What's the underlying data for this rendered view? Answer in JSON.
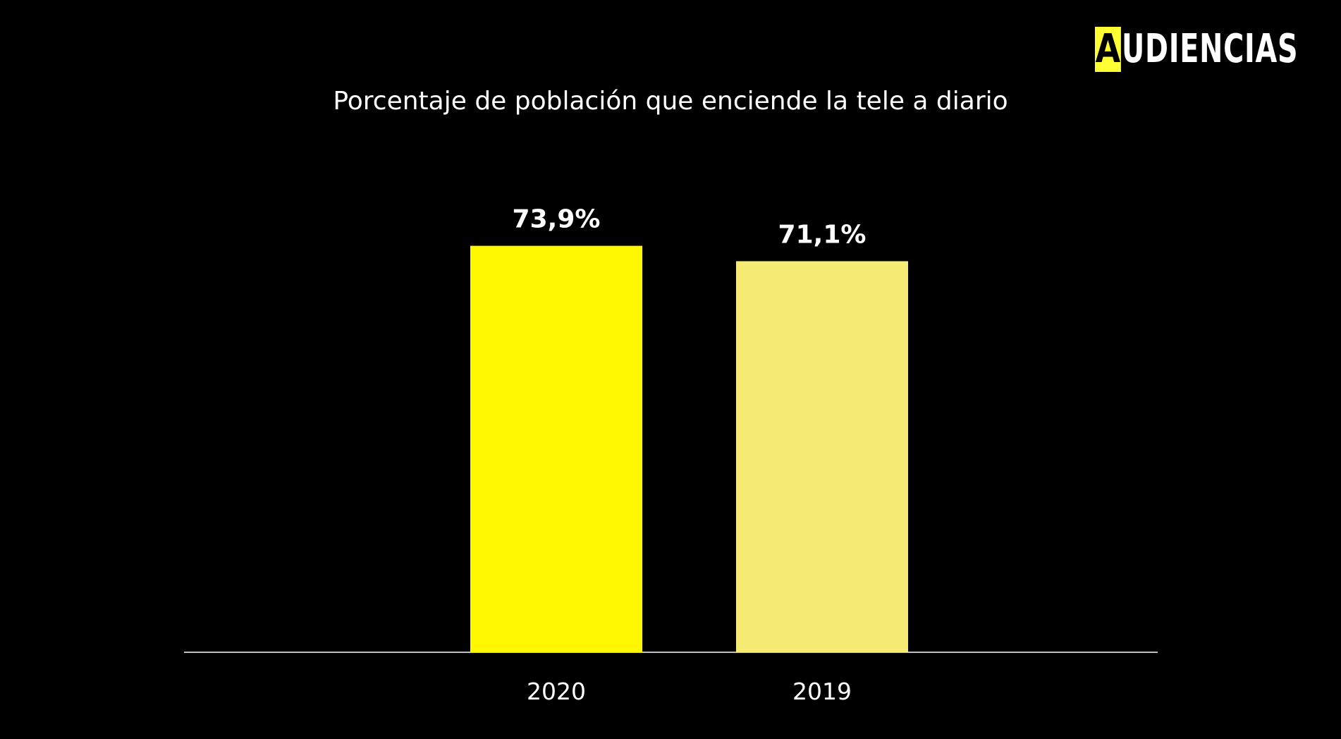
{
  "logo": {
    "first_letter": "A",
    "rest": "UDIENCIAS",
    "text": "AUDIENCIAS"
  },
  "colors": {
    "background": "#000000",
    "logo_accent": "#ffff33",
    "axis": "#ffffff",
    "text": "#ffffff"
  },
  "chart_data": {
    "type": "bar",
    "title": "Porcentaje de población que enciende la tele a diario",
    "xlabel": "",
    "ylabel": "",
    "categories": [
      "2020",
      "2019"
    ],
    "values": [
      73.9,
      71.1
    ],
    "value_labels": [
      "73,9%",
      "71,1%"
    ],
    "bar_colors": [
      "#fff700",
      "#f6ec73"
    ],
    "ylim": [
      0,
      100
    ],
    "grid": false,
    "legend": "none"
  }
}
